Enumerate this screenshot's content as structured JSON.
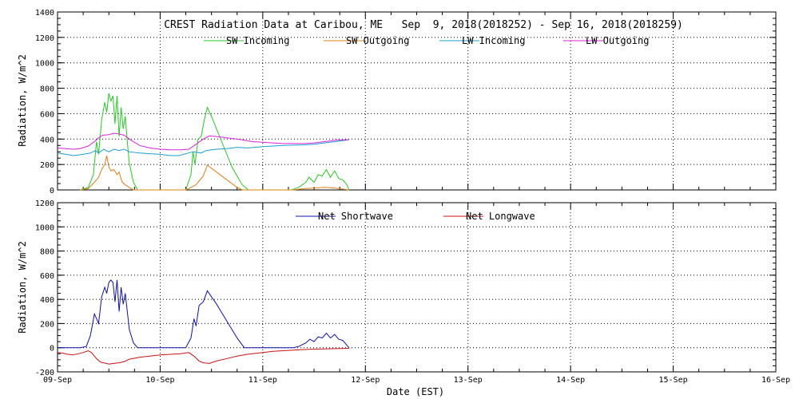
{
  "chart_data": [
    {
      "type": "line",
      "title": "CREST Radiation Data at Caribou, ME   Sep  9, 2018(2018252) - Sep 16, 2018(2018259)",
      "ylabel": "Radiation, W/m^2",
      "xlabel": "",
      "ylim": [
        0,
        1400
      ],
      "yticks": [
        0,
        200,
        400,
        600,
        800,
        1000,
        1200,
        1400
      ],
      "xlim": [
        0,
        7
      ],
      "xtick_labels": [
        "09-Sep",
        "10-Sep",
        "11-Sep",
        "12-Sep",
        "13-Sep",
        "14-Sep",
        "15-Sep",
        "16-Sep"
      ],
      "grid": true,
      "legend": "top",
      "series": [
        {
          "name": "SW Incoming",
          "color": "#22cc22",
          "points": [
            [
              0.22,
              0
            ],
            [
              0.3,
              20
            ],
            [
              0.35,
              120
            ],
            [
              0.38,
              380
            ],
            [
              0.4,
              280
            ],
            [
              0.43,
              550
            ],
            [
              0.46,
              690
            ],
            [
              0.48,
              610
            ],
            [
              0.5,
              760
            ],
            [
              0.52,
              700
            ],
            [
              0.54,
              740
            ],
            [
              0.56,
              520
            ],
            [
              0.58,
              740
            ],
            [
              0.6,
              420
            ],
            [
              0.62,
              650
            ],
            [
              0.64,
              480
            ],
            [
              0.66,
              580
            ],
            [
              0.68,
              380
            ],
            [
              0.7,
              210
            ],
            [
              0.74,
              60
            ],
            [
              0.78,
              0
            ],
            [
              1.25,
              0
            ],
            [
              1.3,
              120
            ],
            [
              1.32,
              300
            ],
            [
              1.34,
              200
            ],
            [
              1.37,
              400
            ],
            [
              1.4,
              420
            ],
            [
              1.43,
              550
            ],
            [
              1.46,
              650
            ],
            [
              1.5,
              580
            ],
            [
              1.6,
              380
            ],
            [
              1.7,
              180
            ],
            [
              1.8,
              40
            ],
            [
              1.86,
              0
            ],
            [
              2.28,
              0
            ],
            [
              2.35,
              20
            ],
            [
              2.42,
              60
            ],
            [
              2.45,
              100
            ],
            [
              2.5,
              60
            ],
            [
              2.54,
              120
            ],
            [
              2.58,
              110
            ],
            [
              2.62,
              160
            ],
            [
              2.66,
              100
            ],
            [
              2.7,
              150
            ],
            [
              2.74,
              90
            ],
            [
              2.78,
              80
            ],
            [
              2.82,
              40
            ],
            [
              2.84,
              0
            ]
          ]
        },
        {
          "name": "SW Outgoing",
          "color": "#e08010",
          "points": [
            [
              0.22,
              0
            ],
            [
              0.3,
              10
            ],
            [
              0.36,
              60
            ],
            [
              0.4,
              100
            ],
            [
              0.43,
              160
            ],
            [
              0.46,
              200
            ],
            [
              0.48,
              270
            ],
            [
              0.5,
              180
            ],
            [
              0.52,
              150
            ],
            [
              0.55,
              160
            ],
            [
              0.58,
              120
            ],
            [
              0.6,
              140
            ],
            [
              0.63,
              60
            ],
            [
              0.66,
              40
            ],
            [
              0.7,
              20
            ],
            [
              0.74,
              0
            ],
            [
              1.25,
              0
            ],
            [
              1.35,
              40
            ],
            [
              1.42,
              110
            ],
            [
              1.46,
              195
            ],
            [
              1.55,
              140
            ],
            [
              1.65,
              80
            ],
            [
              1.75,
              20
            ],
            [
              1.8,
              0
            ],
            [
              2.3,
              0
            ],
            [
              2.4,
              10
            ],
            [
              2.5,
              15
            ],
            [
              2.6,
              20
            ],
            [
              2.7,
              15
            ],
            [
              2.84,
              0
            ]
          ]
        },
        {
          "name": "LW Incoming",
          "color": "#1aa0d0",
          "points": [
            [
              0,
              290
            ],
            [
              0.08,
              280
            ],
            [
              0.16,
              270
            ],
            [
              0.25,
              280
            ],
            [
              0.32,
              290
            ],
            [
              0.37,
              310
            ],
            [
              0.4,
              290
            ],
            [
              0.45,
              320
            ],
            [
              0.5,
              300
            ],
            [
              0.55,
              320
            ],
            [
              0.6,
              310
            ],
            [
              0.65,
              320
            ],
            [
              0.7,
              300
            ],
            [
              0.8,
              290
            ],
            [
              0.9,
              285
            ],
            [
              1.0,
              280
            ],
            [
              1.1,
              270
            ],
            [
              1.18,
              270
            ],
            [
              1.25,
              285
            ],
            [
              1.32,
              300
            ],
            [
              1.4,
              290
            ],
            [
              1.45,
              310
            ],
            [
              1.55,
              320
            ],
            [
              1.65,
              325
            ],
            [
              1.75,
              335
            ],
            [
              1.85,
              330
            ],
            [
              2.0,
              340
            ],
            [
              2.1,
              345
            ],
            [
              2.2,
              350
            ],
            [
              2.4,
              355
            ],
            [
              2.5,
              360
            ],
            [
              2.6,
              370
            ],
            [
              2.7,
              380
            ],
            [
              2.8,
              390
            ],
            [
              2.84,
              395
            ]
          ]
        },
        {
          "name": "LW Outgoing",
          "color": "#dd22dd",
          "points": [
            [
              0,
              330
            ],
            [
              0.08,
              325
            ],
            [
              0.15,
              320
            ],
            [
              0.22,
              325
            ],
            [
              0.3,
              345
            ],
            [
              0.36,
              380
            ],
            [
              0.4,
              410
            ],
            [
              0.44,
              430
            ],
            [
              0.5,
              435
            ],
            [
              0.55,
              445
            ],
            [
              0.6,
              440
            ],
            [
              0.65,
              430
            ],
            [
              0.72,
              390
            ],
            [
              0.8,
              350
            ],
            [
              0.9,
              330
            ],
            [
              1.0,
              320
            ],
            [
              1.1,
              315
            ],
            [
              1.2,
              315
            ],
            [
              1.28,
              320
            ],
            [
              1.35,
              360
            ],
            [
              1.42,
              400
            ],
            [
              1.48,
              425
            ],
            [
              1.55,
              420
            ],
            [
              1.65,
              410
            ],
            [
              1.75,
              400
            ],
            [
              1.9,
              380
            ],
            [
              2.0,
              375
            ],
            [
              2.1,
              370
            ],
            [
              2.2,
              365
            ],
            [
              2.4,
              365
            ],
            [
              2.5,
              370
            ],
            [
              2.6,
              380
            ],
            [
              2.7,
              390
            ],
            [
              2.8,
              395
            ],
            [
              2.84,
              395
            ]
          ]
        }
      ]
    },
    {
      "type": "line",
      "title": "",
      "ylabel": "Radiation, W/m^2",
      "xlabel": "Date (EST)",
      "ylim": [
        -200,
        1200
      ],
      "yticks": [
        -200,
        0,
        200,
        400,
        600,
        800,
        1000,
        1200
      ],
      "xlim": [
        0,
        7
      ],
      "xtick_labels": [
        "09-Sep",
        "10-Sep",
        "11-Sep",
        "12-Sep",
        "13-Sep",
        "14-Sep",
        "15-Sep",
        "16-Sep"
      ],
      "grid": true,
      "legend": "top",
      "series": [
        {
          "name": "Net Shortwave",
          "color": "#1010b0",
          "points": [
            [
              0,
              0
            ],
            [
              0.22,
              0
            ],
            [
              0.28,
              10
            ],
            [
              0.32,
              100
            ],
            [
              0.36,
              280
            ],
            [
              0.4,
              200
            ],
            [
              0.43,
              420
            ],
            [
              0.46,
              500
            ],
            [
              0.48,
              450
            ],
            [
              0.5,
              540
            ],
            [
              0.52,
              560
            ],
            [
              0.54,
              540
            ],
            [
              0.56,
              380
            ],
            [
              0.58,
              560
            ],
            [
              0.6,
              300
            ],
            [
              0.62,
              500
            ],
            [
              0.64,
              360
            ],
            [
              0.66,
              450
            ],
            [
              0.68,
              300
            ],
            [
              0.7,
              150
            ],
            [
              0.74,
              40
            ],
            [
              0.78,
              0
            ],
            [
              1.25,
              0
            ],
            [
              1.3,
              80
            ],
            [
              1.33,
              240
            ],
            [
              1.35,
              180
            ],
            [
              1.38,
              350
            ],
            [
              1.42,
              380
            ],
            [
              1.46,
              470
            ],
            [
              1.55,
              360
            ],
            [
              1.65,
              220
            ],
            [
              1.75,
              80
            ],
            [
              1.82,
              0
            ],
            [
              2.3,
              0
            ],
            [
              2.35,
              10
            ],
            [
              2.42,
              40
            ],
            [
              2.46,
              70
            ],
            [
              2.5,
              50
            ],
            [
              2.54,
              90
            ],
            [
              2.58,
              80
            ],
            [
              2.62,
              120
            ],
            [
              2.66,
              80
            ],
            [
              2.7,
              110
            ],
            [
              2.74,
              70
            ],
            [
              2.78,
              60
            ],
            [
              2.84,
              0
            ]
          ]
        },
        {
          "name": "Net Longwave",
          "color": "#cc1010",
          "points": [
            [
              0,
              -40
            ],
            [
              0.05,
              -45
            ],
            [
              0.1,
              -55
            ],
            [
              0.15,
              -60
            ],
            [
              0.2,
              -50
            ],
            [
              0.25,
              -40
            ],
            [
              0.3,
              -25
            ],
            [
              0.33,
              -40
            ],
            [
              0.38,
              -90
            ],
            [
              0.42,
              -120
            ],
            [
              0.45,
              -125
            ],
            [
              0.5,
              -135
            ],
            [
              0.55,
              -130
            ],
            [
              0.6,
              -125
            ],
            [
              0.65,
              -115
            ],
            [
              0.7,
              -95
            ],
            [
              0.8,
              -80
            ],
            [
              0.9,
              -70
            ],
            [
              1.0,
              -60
            ],
            [
              1.1,
              -55
            ],
            [
              1.2,
              -50
            ],
            [
              1.28,
              -40
            ],
            [
              1.33,
              -70
            ],
            [
              1.38,
              -110
            ],
            [
              1.42,
              -125
            ],
            [
              1.48,
              -130
            ],
            [
              1.55,
              -110
            ],
            [
              1.65,
              -90
            ],
            [
              1.75,
              -70
            ],
            [
              1.85,
              -55
            ],
            [
              2.0,
              -40
            ],
            [
              2.1,
              -30
            ],
            [
              2.2,
              -25
            ],
            [
              2.3,
              -20
            ],
            [
              2.4,
              -15
            ],
            [
              2.5,
              -12
            ],
            [
              2.6,
              -10
            ],
            [
              2.7,
              -8
            ],
            [
              2.84,
              -5
            ]
          ]
        }
      ]
    }
  ]
}
